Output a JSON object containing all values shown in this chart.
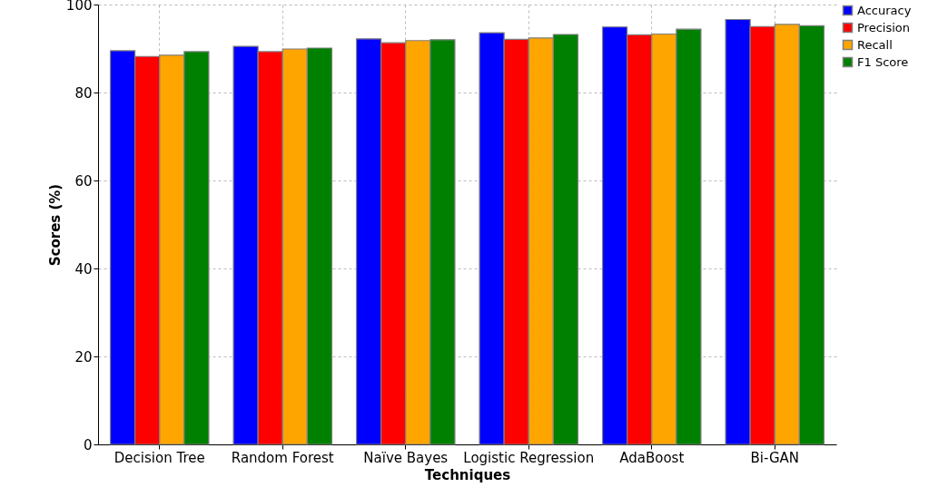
{
  "chart_data": {
    "type": "bar",
    "xlabel": "Techniques",
    "ylabel": "Scores (%)",
    "categories": [
      "Decision Tree",
      "Random Forest",
      "Naïve Bayes",
      "Logistic Regression",
      "AdaBoost",
      "Bi-GAN"
    ],
    "series": [
      {
        "name": "Accuracy",
        "color": "#0000ff",
        "values": [
          89.5,
          90.5,
          92.2,
          93.6,
          94.9,
          96.6
        ]
      },
      {
        "name": "Precision",
        "color": "#ff0000",
        "values": [
          88.2,
          89.3,
          91.3,
          92.1,
          93.1,
          95.0
        ]
      },
      {
        "name": "Recall",
        "color": "#ffa500",
        "values": [
          88.5,
          89.9,
          91.8,
          92.4,
          93.3,
          95.5
        ]
      },
      {
        "name": "F1 Score",
        "color": "#008000",
        "values": [
          89.3,
          90.1,
          92.0,
          93.2,
          94.4,
          95.2
        ]
      }
    ],
    "ylim": [
      0,
      100
    ],
    "yticks": [
      0,
      20,
      40,
      60,
      80,
      100
    ],
    "grid": true,
    "legend": "top right"
  }
}
